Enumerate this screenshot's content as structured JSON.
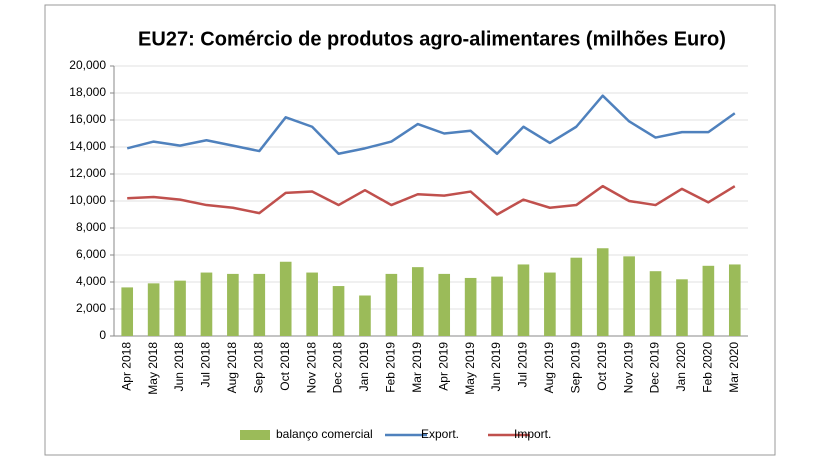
{
  "chart_data": {
    "type": "combo",
    "title": "EU27: Comércio de produtos agro-alimentares (milhões Euro)",
    "categories": [
      "Apr 2018",
      "May 2018",
      "Jun 2018",
      "Jul 2018",
      "Aug 2018",
      "Sep 2018",
      "Oct 2018",
      "Nov 2018",
      "Dec 2018",
      "Jan 2019",
      "Feb 2019",
      "Mar 2019",
      "Apr 2019",
      "May 2019",
      "Jun 2019",
      "Jul 2019",
      "Aug 2019",
      "Sep 2019",
      "Oct 2019",
      "Nov 2019",
      "Dec 2019",
      "Jan 2020",
      "Feb 2020",
      "Mar 2020"
    ],
    "series": [
      {
        "name": "balanço comercial",
        "type": "bar",
        "color": "#9bbb59",
        "values": [
          3600,
          3900,
          4100,
          4700,
          4600,
          4600,
          5500,
          4700,
          3700,
          3000,
          4600,
          5100,
          4600,
          4300,
          4400,
          5300,
          4700,
          5800,
          6500,
          5900,
          4800,
          4200,
          5200,
          5300
        ]
      },
      {
        "name": "Export.",
        "type": "line",
        "color": "#4f81bd",
        "values": [
          13900,
          14400,
          14100,
          14500,
          14100,
          13700,
          16200,
          15500,
          13500,
          13900,
          14400,
          15700,
          15000,
          15200,
          13500,
          15500,
          14300,
          15500,
          17800,
          15900,
          14700,
          15100,
          15100,
          16500
        ]
      },
      {
        "name": "Import.",
        "type": "line",
        "color": "#c0504d",
        "values": [
          10200,
          10300,
          10100,
          9700,
          9500,
          9100,
          10600,
          10700,
          9700,
          10800,
          9700,
          10500,
          10400,
          10700,
          9000,
          10100,
          9500,
          9700,
          11100,
          10000,
          9700,
          10900,
          9900,
          11100
        ]
      }
    ],
    "ylim": [
      0,
      20000
    ],
    "yticks": [
      0,
      {
        "value": 2000,
        "label": "2,000"
      },
      {
        "value": 4000,
        "label": "4,000"
      },
      {
        "value": 6000,
        "label": "6,000"
      },
      {
        "value": 8000,
        "label": "8,000"
      },
      {
        "value": 10000,
        "label": "10,000"
      },
      {
        "value": 12000,
        "label": "12,000"
      },
      {
        "value": 14000,
        "label": "14,000"
      },
      {
        "value": 16000,
        "label": "16,000"
      },
      {
        "value": 18000,
        "label": "18,000"
      },
      {
        "value": 20000,
        "label": "20,000"
      }
    ],
    "grid": true,
    "legend": "bottom"
  }
}
